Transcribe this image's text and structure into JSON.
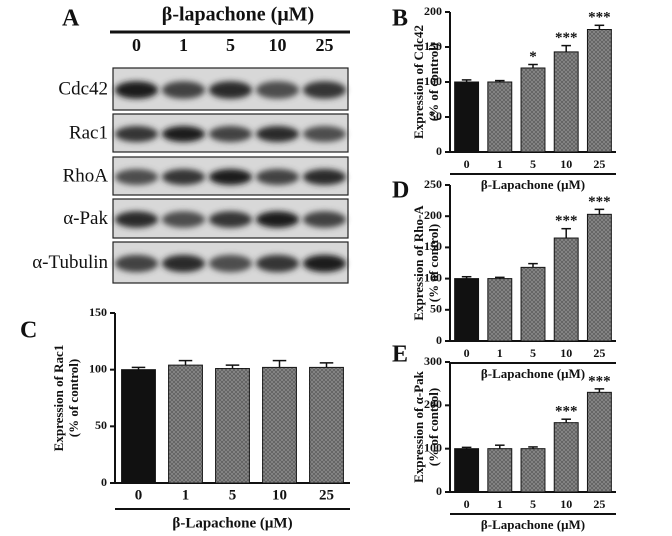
{
  "blot": {
    "panel": "A",
    "title": "β-lapachone (μM)",
    "doses": [
      "0",
      "1",
      "5",
      "10",
      "25"
    ],
    "rows": [
      "Cdc42",
      "Rac1",
      "RhoA",
      "α-Pak",
      "α-Tubulin"
    ]
  },
  "chart_data": [
    {
      "type": "bar",
      "panel": "B",
      "ylabel": [
        "Expression of Cdc42",
        "(% of control)"
      ],
      "xlabel": "β-Lapachone (μM)",
      "categories": [
        "0",
        "1",
        "5",
        "10",
        "25"
      ],
      "values": [
        100,
        100,
        120,
        143,
        175
      ],
      "errors": [
        3,
        2,
        5,
        9,
        6
      ],
      "annotations": [
        null,
        null,
        "*",
        "***",
        "***"
      ],
      "colors": [
        "#111111",
        "#8a8a8a",
        "#8a8a8a",
        "#8a8a8a",
        "#8a8a8a"
      ],
      "ylim": [
        0,
        200
      ],
      "yticks": [
        0,
        50,
        100,
        150,
        200
      ]
    },
    {
      "type": "bar",
      "panel": "D",
      "ylabel": [
        "Expression of Rho-A",
        "(% of control)"
      ],
      "xlabel": "β-Lapachone (μM)",
      "categories": [
        "0",
        "1",
        "5",
        "10",
        "25"
      ],
      "values": [
        100,
        100,
        118,
        165,
        203
      ],
      "errors": [
        3,
        2,
        6,
        15,
        8
      ],
      "annotations": [
        null,
        null,
        null,
        "***",
        "***"
      ],
      "colors": [
        "#111111",
        "#8a8a8a",
        "#8a8a8a",
        "#8a8a8a",
        "#8a8a8a"
      ],
      "ylim": [
        0,
        250
      ],
      "yticks": [
        0,
        50,
        100,
        150,
        200,
        250
      ]
    },
    {
      "type": "bar",
      "panel": "E",
      "ylabel": [
        "Expression of α-Pak",
        "(% of control)"
      ],
      "xlabel": "β-Lapachone (μM)",
      "categories": [
        "0",
        "1",
        "5",
        "10",
        "25"
      ],
      "values": [
        100,
        100,
        100,
        160,
        230
      ],
      "errors": [
        3,
        8,
        4,
        8,
        8
      ],
      "annotations": [
        null,
        null,
        null,
        "***",
        "***"
      ],
      "colors": [
        "#111111",
        "#8a8a8a",
        "#8a8a8a",
        "#8a8a8a",
        "#8a8a8a"
      ],
      "ylim": [
        0,
        300
      ],
      "yticks": [
        0,
        100,
        200,
        300
      ]
    },
    {
      "type": "bar",
      "panel": "C",
      "ylabel": [
        "Expression of Rac1",
        "(% of control)"
      ],
      "xlabel": "β-Lapachone (μM)",
      "categories": [
        "0",
        "1",
        "5",
        "10",
        "25"
      ],
      "values": [
        100,
        104,
        101,
        102,
        102
      ],
      "errors": [
        2,
        4,
        3,
        6,
        4
      ],
      "annotations": [
        null,
        null,
        null,
        null,
        null
      ],
      "colors": [
        "#111111",
        "#8a8a8a",
        "#8a8a8a",
        "#8a8a8a",
        "#8a8a8a"
      ],
      "ylim": [
        0,
        150
      ],
      "yticks": [
        0,
        50,
        100,
        150
      ]
    }
  ]
}
